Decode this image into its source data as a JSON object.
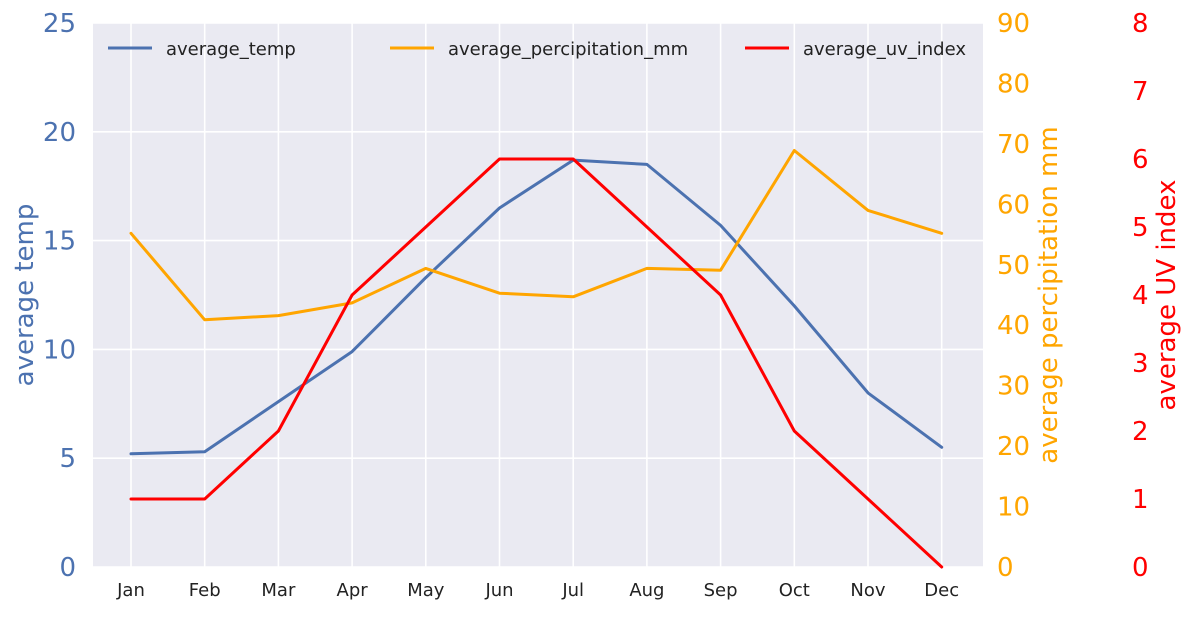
{
  "chart_data": {
    "type": "line",
    "title": "",
    "xlabel": "",
    "categories": [
      "Jan",
      "Feb",
      "Mar",
      "Apr",
      "May",
      "Jun",
      "Jul",
      "Aug",
      "Sep",
      "Oct",
      "Nov",
      "Dec"
    ],
    "axes": {
      "left": {
        "label": "average temp",
        "ylim": [
          0,
          25
        ],
        "ticks": [
          0,
          5,
          10,
          15,
          20,
          25
        ],
        "color": "#4c72b0"
      },
      "right1": {
        "label": "average percipitation mm",
        "ylim": [
          0,
          90
        ],
        "ticks": [
          0,
          10,
          20,
          30,
          40,
          50,
          60,
          70,
          80,
          90
        ],
        "color": "#ffa500"
      },
      "right2": {
        "label": "average UV index",
        "ylim": [
          0,
          8
        ],
        "ticks": [
          0,
          1,
          2,
          3,
          4,
          5,
          6,
          7,
          8
        ],
        "color": "#ff0000"
      }
    },
    "series": [
      {
        "name": "average_temp",
        "axis": "left",
        "color": "#4c72b0",
        "values": [
          5.2,
          5.3,
          7.6,
          9.9,
          13.3,
          16.5,
          18.7,
          18.5,
          15.7,
          12.0,
          8.0,
          5.5
        ]
      },
      {
        "name": "average_percipitation_mm",
        "axis": "right1",
        "color": "#ffa500",
        "values": [
          55.2,
          40.9,
          41.6,
          43.7,
          49.4,
          45.3,
          44.7,
          49.4,
          49.1,
          68.9,
          59.0,
          55.2
        ]
      },
      {
        "name": "average_uv_index",
        "axis": "right2",
        "color": "#ff0000",
        "values": [
          1,
          1,
          2,
          4,
          5,
          6,
          6,
          5,
          4,
          2,
          1,
          0
        ]
      }
    ],
    "grid": true,
    "legend": "top"
  }
}
